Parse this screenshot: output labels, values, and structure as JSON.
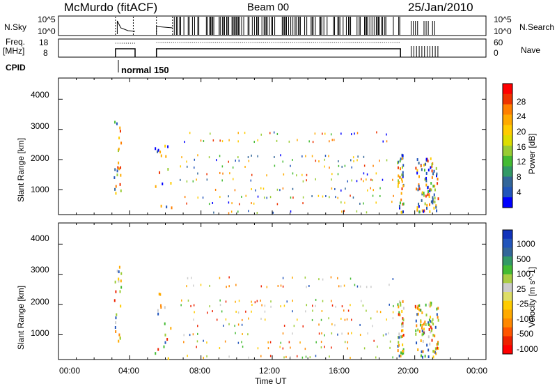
{
  "header": {
    "station": "McMurdo (fitACF)",
    "beam": "Beam 00",
    "date": "25/Jan/2010"
  },
  "top_panels": {
    "nsky_label": "N.Sky",
    "nsky_ticks": [
      "10^5",
      "10^0"
    ],
    "nsearch_label": "N.Search",
    "nsearch_ticks": [
      "10^5",
      "10^0"
    ],
    "freq_label": "Freq.",
    "freq_unit": "[MHz]",
    "freq_ticks": [
      "18",
      "8"
    ],
    "nave_label": "Nave",
    "nave_ticks": [
      "60",
      "0"
    ],
    "cpid_label": "CPID",
    "cpid_value": "normal 150"
  },
  "chart_data": [
    {
      "type": "scatter",
      "panel": "power",
      "ylabel": "Slant Range [km]",
      "yticks": [
        "4000",
        "3000",
        "2000",
        "1000"
      ],
      "ylim": [
        180,
        4700
      ],
      "xlim": [
        0,
        24
      ],
      "colorbar": {
        "label": "Power [dB]",
        "ticks": [
          "28",
          "24",
          "20",
          "16",
          "12",
          "8",
          "4"
        ],
        "colors": [
          "#ff0000",
          "#ee3300",
          "#ff7f00",
          "#ffaa00",
          "#ffcc00",
          "#dddd00",
          "#99cc33",
          "#44bb33",
          "#339966",
          "#336699",
          "#2255bb",
          "#0000ff"
        ]
      }
    },
    {
      "type": "scatter",
      "panel": "velocity",
      "ylabel": "Slant Range [km]",
      "yticks": [
        "4000",
        "3000",
        "2000",
        "1000"
      ],
      "ylim": [
        180,
        4700
      ],
      "xlim": [
        0,
        24
      ],
      "colorbar": {
        "label": "Velocity [m s^-1]",
        "ticks": [
          "1000",
          "500",
          "100",
          "25",
          "-25",
          "-100",
          "-500",
          "-1000"
        ],
        "colors": [
          "#1133bb",
          "#2255bb",
          "#336699",
          "#339966",
          "#44bb33",
          "#aacc44",
          "#cccccc",
          "#dddd66",
          "#ffcc00",
          "#ffaa00",
          "#ff8800",
          "#ff5500",
          "#ee2200",
          "#ff0000"
        ]
      }
    }
  ],
  "x_axis": {
    "ticks": [
      "00:00",
      "04:00",
      "08:00",
      "12:00",
      "16:00",
      "20:00",
      "00:00"
    ],
    "label": "Time UT"
  }
}
